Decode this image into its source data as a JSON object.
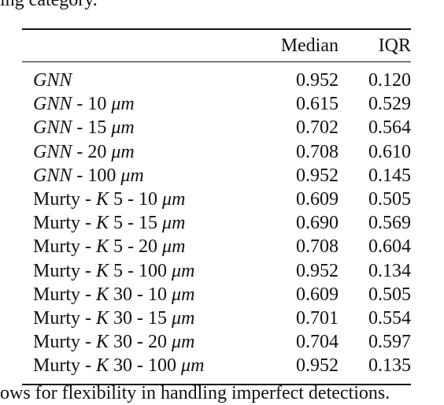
{
  "context": {
    "top_fragment": "ing category.",
    "bottom_fragment": "ows for flexibility in handling imperfect detections."
  },
  "table": {
    "headers": [
      "",
      "Median",
      "IQR"
    ],
    "rows": [
      {
        "method": "GNN",
        "variant": "",
        "median": "0.952",
        "iqr": "0.120"
      },
      {
        "method": "GNN",
        "variant": " - 10 μm",
        "median": "0.615",
        "iqr": "0.529"
      },
      {
        "method": "GNN",
        "variant": " - 15 μm",
        "median": "0.702",
        "iqr": "0.564"
      },
      {
        "method": "GNN",
        "variant": " - 20 μm",
        "median": "0.708",
        "iqr": "0.610"
      },
      {
        "method": "GNN",
        "variant": " - 100 μm",
        "median": "0.952",
        "iqr": "0.145"
      },
      {
        "method": "Murty",
        "variant": " - K 5 - 10 μm",
        "median": "0.609",
        "iqr": "0.505"
      },
      {
        "method": "Murty",
        "variant": " - K 5 - 15 μm",
        "median": "0.690",
        "iqr": "0.569"
      },
      {
        "method": "Murty",
        "variant": " - K 5 - 20 μm",
        "median": "0.708",
        "iqr": "0.604"
      },
      {
        "method": "Murty",
        "variant": " - K 5 - 100 μm",
        "median": "0.952",
        "iqr": "0.134"
      },
      {
        "method": "Murty",
        "variant": " - K 30 - 10 μm",
        "median": "0.609",
        "iqr": "0.505"
      },
      {
        "method": "Murty",
        "variant": " - K 30 - 15 μm",
        "median": "0.701",
        "iqr": "0.554"
      },
      {
        "method": "Murty",
        "variant": " - K 30 - 20 μm",
        "median": "0.704",
        "iqr": "0.597"
      },
      {
        "method": "Murty",
        "variant": " - K 30 - 100 μm",
        "median": "0.952",
        "iqr": "0.135"
      }
    ]
  }
}
